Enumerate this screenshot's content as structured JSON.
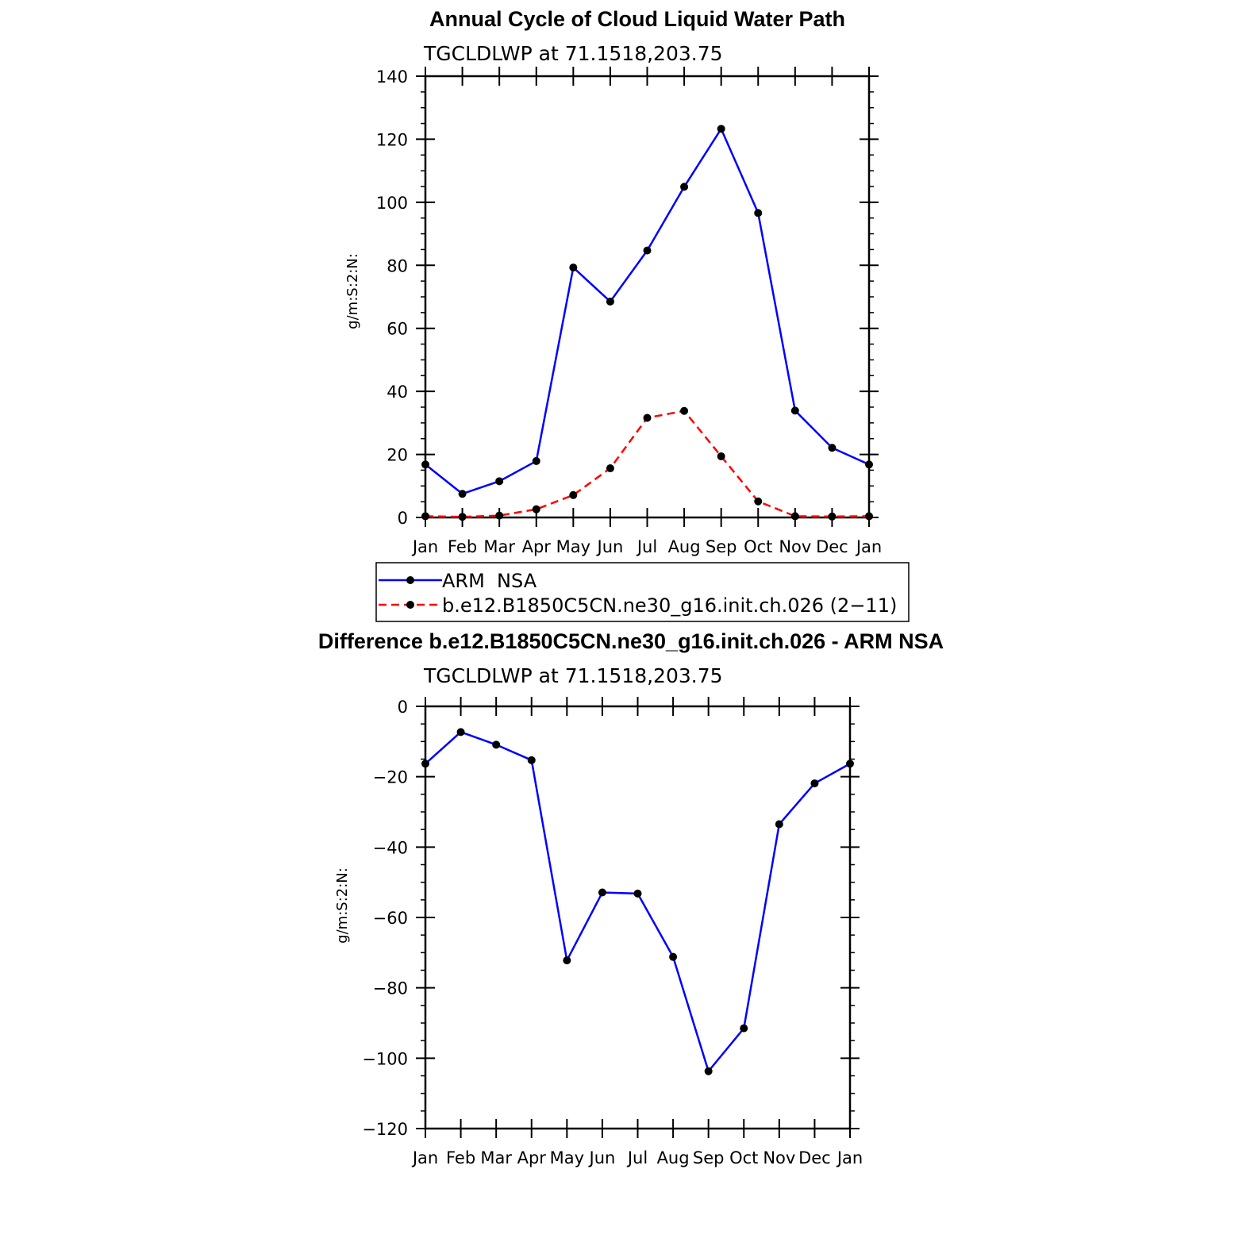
{
  "chart_data": [
    {
      "type": "line",
      "title": "Annual Cycle of Cloud Liquid Water Path",
      "subtitle": "TGCLDLWP  at  71.1518,203.75",
      "ylabel": "g/m:S:2:N:",
      "xlabel": "",
      "categories": [
        "Jan",
        "Feb",
        "Mar",
        "Apr",
        "May",
        "Jun",
        "Jul",
        "Aug",
        "Sep",
        "Oct",
        "Nov",
        "Dec",
        "Jan"
      ],
      "ylim": [
        0,
        140
      ],
      "yticks": [
        0,
        20,
        40,
        60,
        80,
        100,
        120,
        140
      ],
      "series": [
        {
          "name": "ARM  NSA",
          "color": "#0000ff",
          "dashed": false,
          "values": [
            16.8,
            7.5,
            11.5,
            17.9,
            79.3,
            68.5,
            84.7,
            104.9,
            123.3,
            96.6,
            33.9,
            22.1,
            16.8
          ]
        },
        {
          "name": "b.e12.B1850C5CN.ne30_g16.init.ch.026 (2−11)",
          "color": "#ff0000",
          "dashed": true,
          "values": [
            0.4,
            0.2,
            0.6,
            2.6,
            7.1,
            15.6,
            31.6,
            33.8,
            19.4,
            5.1,
            0.4,
            0.3,
            0.4
          ]
        }
      ],
      "legend": "below"
    },
    {
      "type": "line",
      "title": "Difference b.e12.B1850C5CN.ne30_g16.init.ch.026 - ARM NSA",
      "subtitle": "TGCLDLWP  at  71.1518,203.75",
      "ylabel": "g/m:S:2:N:",
      "xlabel": "",
      "categories": [
        "Jan",
        "Feb",
        "Mar",
        "Apr",
        "May",
        "Jun",
        "Jul",
        "Aug",
        "Sep",
        "Oct",
        "Nov",
        "Dec",
        "Jan"
      ],
      "ylim": [
        -120,
        0
      ],
      "yticks": [
        0,
        -20,
        -40,
        -60,
        -80,
        -100,
        -120
      ],
      "series": [
        {
          "name": "Difference",
          "color": "#0000ff",
          "dashed": false,
          "values": [
            -16.3,
            -7.3,
            -10.9,
            -15.3,
            -72.2,
            -52.9,
            -53.2,
            -71.2,
            -103.7,
            -91.5,
            -33.5,
            -21.9,
            -16.3
          ]
        }
      ]
    }
  ]
}
